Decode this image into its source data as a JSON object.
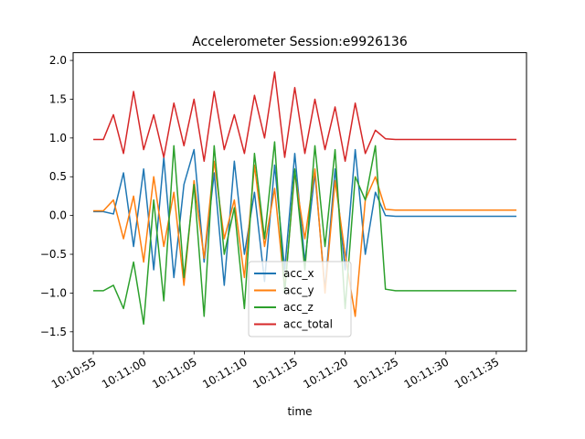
{
  "chart_data": {
    "type": "line",
    "title": "Accelerometer Session:e9926136",
    "xlabel": "time",
    "ylabel": "",
    "xlim": [
      "10:10:53",
      "10:11:38"
    ],
    "ylim": [
      -1.75,
      2.1
    ],
    "x_tick_labels": [
      "10:10:55",
      "10:11:00",
      "10:11:05",
      "10:11:10",
      "10:11:15",
      "10:11:20",
      "10:11:25",
      "10:11:30",
      "10:11:35"
    ],
    "y_ticks": [
      -1.5,
      -1.0,
      -0.5,
      0.0,
      0.5,
      1.0,
      1.5,
      2.0
    ],
    "y_tick_labels": [
      "−1.5",
      "−1.0",
      "−0.5",
      "0.0",
      "0.5",
      "1.0",
      "1.5",
      "2.0"
    ],
    "grid": false,
    "legend_position": "lower-center",
    "series": [
      {
        "name": "acc_x",
        "color": "#1f77b4",
        "x": [
          "10:10:55",
          "10:10:56",
          "10:10:57",
          "10:10:58",
          "10:10:59",
          "10:11:00",
          "10:11:01",
          "10:11:02",
          "10:11:03",
          "10:11:04",
          "10:11:05",
          "10:11:06",
          "10:11:07",
          "10:11:08",
          "10:11:09",
          "10:11:10",
          "10:11:11",
          "10:11:12",
          "10:11:13",
          "10:11:14",
          "10:11:15",
          "10:11:16",
          "10:11:17",
          "10:11:18",
          "10:11:19",
          "10:11:20",
          "10:11:21",
          "10:11:22",
          "10:11:23",
          "10:11:24",
          "10:11:25",
          "10:11:26",
          "10:11:28",
          "10:11:30",
          "10:11:32",
          "10:11:34",
          "10:11:36",
          "10:11:37"
        ],
        "y": [
          0.05,
          0.05,
          0.02,
          0.55,
          -0.4,
          0.6,
          -0.7,
          0.75,
          -0.8,
          0.4,
          0.85,
          -0.6,
          0.55,
          -0.9,
          0.7,
          -0.5,
          0.3,
          -0.85,
          0.65,
          -0.7,
          0.8,
          -0.6,
          0.55,
          -0.95,
          0.6,
          -0.7,
          0.85,
          -0.5,
          0.3,
          0.0,
          -0.01,
          -0.01,
          -0.01,
          -0.01,
          -0.01,
          -0.01,
          -0.01,
          -0.01
        ]
      },
      {
        "name": "acc_y",
        "color": "#ff7f0e",
        "x": [
          "10:10:55",
          "10:10:56",
          "10:10:57",
          "10:10:58",
          "10:10:59",
          "10:11:00",
          "10:11:01",
          "10:11:02",
          "10:11:03",
          "10:11:04",
          "10:11:05",
          "10:11:06",
          "10:11:07",
          "10:11:08",
          "10:11:09",
          "10:11:10",
          "10:11:11",
          "10:11:12",
          "10:11:13",
          "10:11:14",
          "10:11:15",
          "10:11:16",
          "10:11:17",
          "10:11:18",
          "10:11:19",
          "10:11:20",
          "10:11:21",
          "10:11:22",
          "10:11:23",
          "10:11:24",
          "10:11:25",
          "10:11:26",
          "10:11:28",
          "10:11:30",
          "10:11:32",
          "10:11:34",
          "10:11:36",
          "10:11:37"
        ],
        "y": [
          0.06,
          0.06,
          0.2,
          -0.3,
          0.25,
          -0.6,
          0.5,
          -0.4,
          0.3,
          -0.9,
          0.45,
          -0.55,
          0.7,
          -0.3,
          0.2,
          -0.8,
          0.65,
          -0.4,
          0.35,
          -0.95,
          0.55,
          -0.3,
          0.6,
          -1.0,
          0.45,
          -0.5,
          -1.3,
          0.2,
          0.5,
          0.08,
          0.07,
          0.07,
          0.07,
          0.07,
          0.07,
          0.07,
          0.07,
          0.07
        ]
      },
      {
        "name": "acc_z",
        "color": "#2ca02c",
        "x": [
          "10:10:55",
          "10:10:56",
          "10:10:57",
          "10:10:58",
          "10:10:59",
          "10:11:00",
          "10:11:01",
          "10:11:02",
          "10:11:03",
          "10:11:04",
          "10:11:05",
          "10:11:06",
          "10:11:07",
          "10:11:08",
          "10:11:09",
          "10:11:10",
          "10:11:11",
          "10:11:12",
          "10:11:13",
          "10:11:14",
          "10:11:15",
          "10:11:16",
          "10:11:17",
          "10:11:18",
          "10:11:19",
          "10:11:20",
          "10:11:21",
          "10:11:22",
          "10:11:23",
          "10:11:24",
          "10:11:25",
          "10:11:26",
          "10:11:28",
          "10:11:30",
          "10:11:32",
          "10:11:34",
          "10:11:36",
          "10:11:37"
        ],
        "y": [
          -0.97,
          -0.97,
          -0.9,
          -1.2,
          -0.6,
          -1.4,
          0.2,
          -1.1,
          0.9,
          -0.8,
          0.4,
          -1.3,
          0.9,
          -0.5,
          0.1,
          -1.2,
          0.8,
          -0.3,
          0.95,
          -1.0,
          0.6,
          -0.7,
          0.9,
          -0.4,
          0.85,
          -1.2,
          0.5,
          0.2,
          0.9,
          -0.95,
          -0.97,
          -0.97,
          -0.97,
          -0.97,
          -0.97,
          -0.97,
          -0.97,
          -0.97
        ]
      },
      {
        "name": "acc_total",
        "color": "#d62728",
        "x": [
          "10:10:55",
          "10:10:56",
          "10:10:57",
          "10:10:58",
          "10:10:59",
          "10:11:00",
          "10:11:01",
          "10:11:02",
          "10:11:03",
          "10:11:04",
          "10:11:05",
          "10:11:06",
          "10:11:07",
          "10:11:08",
          "10:11:09",
          "10:11:10",
          "10:11:11",
          "10:11:12",
          "10:11:13",
          "10:11:14",
          "10:11:15",
          "10:11:16",
          "10:11:17",
          "10:11:18",
          "10:11:19",
          "10:11:20",
          "10:11:21",
          "10:11:22",
          "10:11:23",
          "10:11:24",
          "10:11:25",
          "10:11:26",
          "10:11:28",
          "10:11:30",
          "10:11:32",
          "10:11:34",
          "10:11:36",
          "10:11:37"
        ],
        "y": [
          0.98,
          0.98,
          1.3,
          0.8,
          1.6,
          0.85,
          1.3,
          0.75,
          1.45,
          0.9,
          1.5,
          0.7,
          1.6,
          0.85,
          1.3,
          0.8,
          1.55,
          1.0,
          1.85,
          0.75,
          1.65,
          0.8,
          1.5,
          0.85,
          1.4,
          0.7,
          1.45,
          0.8,
          1.1,
          0.99,
          0.98,
          0.98,
          0.98,
          0.98,
          0.98,
          0.98,
          0.98,
          0.98
        ]
      }
    ]
  }
}
